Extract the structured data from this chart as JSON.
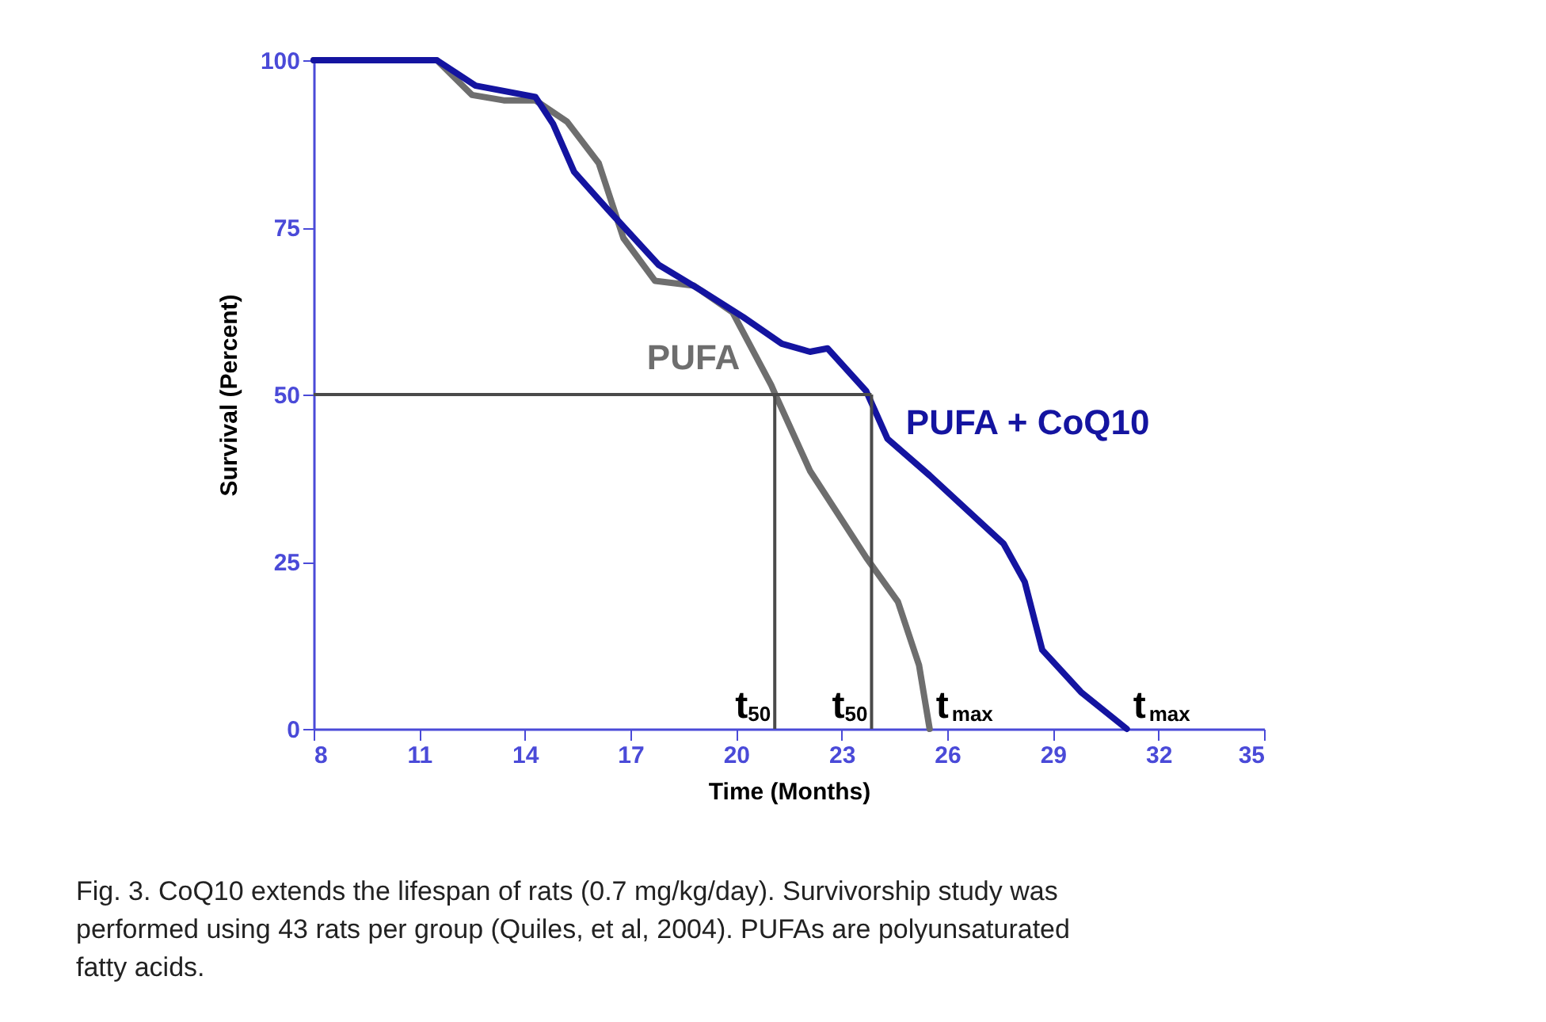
{
  "chart_data": {
    "type": "line",
    "xlabel": "Time (Months)",
    "ylabel": "Survival (Percent)",
    "xlim": [
      8,
      35
    ],
    "xticks": [
      8,
      11,
      14,
      17,
      20,
      23,
      26,
      29,
      32,
      35
    ],
    "ylim": [
      0,
      100
    ],
    "yticks": [
      0,
      25,
      50,
      75,
      100
    ],
    "grid": false,
    "marker": "none",
    "line_style": "solid",
    "series": [
      {
        "name": "PUFA",
        "color": "#6e6e6e",
        "x": [
          8,
          11.5,
          12.5,
          13.4,
          14.3,
          15.2,
          16.1,
          16.8,
          17.7,
          18.8,
          19.9,
          21.0,
          21.1,
          22.1,
          23.7,
          24.6,
          25.2,
          25.5
        ],
        "values": [
          100,
          100,
          94.8,
          94,
          94,
          90.8,
          84.6,
          73.4,
          67,
          66.3,
          62.3,
          51.4,
          50.2,
          38.6,
          25.6,
          19,
          9.5,
          0
        ]
      },
      {
        "name": "PUFA + CoQ10",
        "color": "#1414a0",
        "x": [
          8,
          11.5,
          12.6,
          14.3,
          14.8,
          15.4,
          16.3,
          17.8,
          19.0,
          20.2,
          21.3,
          22.1,
          22.6,
          23.7,
          24.3,
          25.5,
          27.6,
          28.2,
          28.7,
          29.8,
          31.1
        ],
        "values": [
          100,
          100,
          96.2,
          94.5,
          90.5,
          83.3,
          78,
          69.4,
          65.6,
          61.6,
          57.6,
          56.4,
          56.9,
          50.5,
          43.4,
          37.9,
          27.7,
          22,
          11.8,
          5.5,
          0
        ]
      }
    ],
    "ref_lines": [
      {
        "axis": "y",
        "value": 50,
        "color": "#4a4a4a"
      },
      {
        "axis": "x",
        "value": 21.1,
        "color": "#4a4a4a"
      },
      {
        "axis": "x",
        "value": 23.85,
        "color": "#4a4a4a"
      }
    ],
    "annotations": [
      {
        "text": "t$_{50}$",
        "x": 21.1,
        "y": 0
      },
      {
        "text": "t$_{50}$",
        "x": 23.85,
        "y": 0
      },
      {
        "text": "t$_{max}$",
        "x": 25.5,
        "y": 0
      },
      {
        "text": "t$_{max}$",
        "x": 31.1,
        "y": 0
      },
      "Fig. 3. CoQ10 extends the lifespan of rats (0.7 mg/kg/day). Survivorship study was performed using 43 rats per group (Quiles, et al, 2004). PUFAs are polyunsaturated fatty acids."
    ]
  }
}
